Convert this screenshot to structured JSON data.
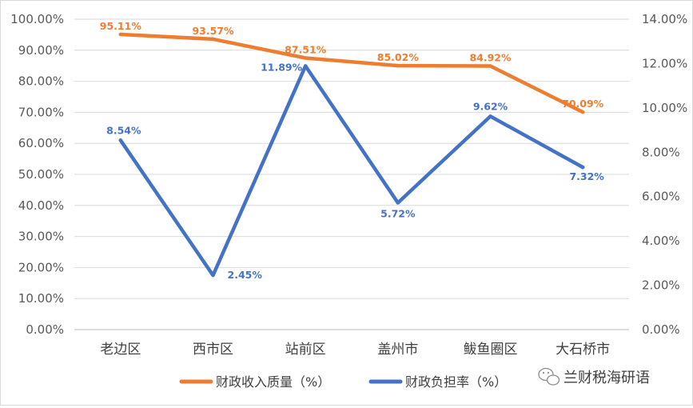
{
  "chart_data": {
    "type": "line",
    "categories": [
      "老边区",
      "西市区",
      "站前区",
      "盖州市",
      "鲅鱼圈区",
      "大石桥市"
    ],
    "series": [
      {
        "name": "财政收入质量（%）",
        "axis": "left",
        "color": "#ED7D31",
        "values": [
          95.11,
          93.57,
          87.51,
          85.02,
          84.92,
          70.09
        ],
        "labels": [
          "95.11%",
          "93.57%",
          "87.51%",
          "85.02%",
          "84.92%",
          "70.09%"
        ]
      },
      {
        "name": "财政负担率（%）",
        "axis": "right",
        "color": "#4472C4",
        "values": [
          8.54,
          2.45,
          11.89,
          5.72,
          9.62,
          7.32
        ],
        "labels": [
          "8.54%",
          "2.45%",
          "11.89%",
          "5.72%",
          "9.62%",
          "7.32%"
        ]
      }
    ],
    "y_left": {
      "lim": [
        0,
        100
      ],
      "ticks": [
        "0.00%",
        "10.00%",
        "20.00%",
        "30.00%",
        "40.00%",
        "50.00%",
        "60.00%",
        "70.00%",
        "80.00%",
        "90.00%",
        "100.00%"
      ]
    },
    "y_right": {
      "lim": [
        0,
        14
      ],
      "ticks": [
        "0.00%",
        "2.00%",
        "4.00%",
        "6.00%",
        "8.00%",
        "10.00%",
        "12.00%",
        "14.00%"
      ]
    },
    "grid": true,
    "legend": "bottom"
  },
  "watermark": {
    "icon": "wechat-icon",
    "text": "兰财税海研语"
  }
}
